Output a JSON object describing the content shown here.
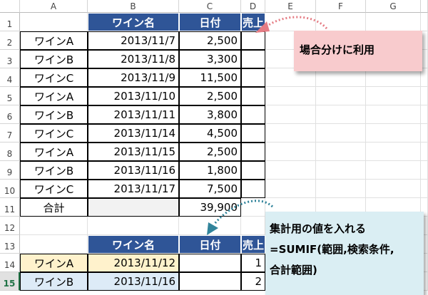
{
  "columns": [
    "A",
    "B",
    "C",
    "D",
    "E",
    "F",
    "G"
  ],
  "rows": [
    "1",
    "2",
    "3",
    "4",
    "5",
    "6",
    "7",
    "8",
    "9",
    "10",
    "11",
    "12",
    "13",
    "14",
    "15"
  ],
  "selected_row": "15",
  "table1": {
    "headers": [
      "ワイン名",
      "日付",
      "売上"
    ],
    "rows": [
      [
        "ワインA",
        "2013/11/7",
        "2,500"
      ],
      [
        "ワインB",
        "2013/11/8",
        "3,300"
      ],
      [
        "ワインC",
        "2013/11/9",
        "11,500"
      ],
      [
        "ワインA",
        "2013/11/10",
        "2,500"
      ],
      [
        "ワインB",
        "2013/11/11",
        "3,800"
      ],
      [
        "ワインC",
        "2013/11/14",
        "4,500"
      ],
      [
        "ワインA",
        "2013/11/15",
        "2,500"
      ],
      [
        "ワインB",
        "2013/11/16",
        "1,800"
      ],
      [
        "ワインC",
        "2013/11/17",
        "7,500"
      ]
    ],
    "total_label": "合計",
    "total_value": "39,900"
  },
  "table2": {
    "headers": [
      "ワイン名",
      "日付",
      "売上"
    ],
    "rows": [
      {
        "name": "ワインA",
        "date": "2013/11/12",
        "sales": "",
        "d": "1",
        "color": "#fff2cc"
      },
      {
        "name": "ワインB",
        "date": "2013/11/16",
        "sales": "",
        "d": "2",
        "color": "#ddebf7"
      }
    ]
  },
  "callouts": {
    "pink": {
      "text": "場合分けに利用",
      "color": "#f8cbcd",
      "arrow_color": "#e57c84"
    },
    "blue": {
      "lines": [
        "集計用の値を入れる",
        "=SUMIF(範囲,検索条件,",
        "合計範囲)"
      ],
      "color": "#daeef3",
      "arrow_color": "#31849b"
    }
  },
  "colors": {
    "header": "#2f5597"
  }
}
